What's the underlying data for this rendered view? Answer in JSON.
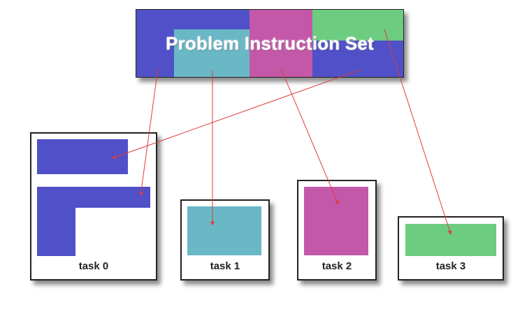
{
  "title": "Problem Instruction Set",
  "colors": {
    "blue": "#5050c8",
    "teal": "#6ab8c6",
    "magenta": "#c458a8",
    "green": "#6ccc80",
    "arrow": "#e03a3a"
  },
  "tasks": [
    {
      "label": "task 0"
    },
    {
      "label": "task 1"
    },
    {
      "label": "task 2"
    },
    {
      "label": "task 3"
    }
  ]
}
